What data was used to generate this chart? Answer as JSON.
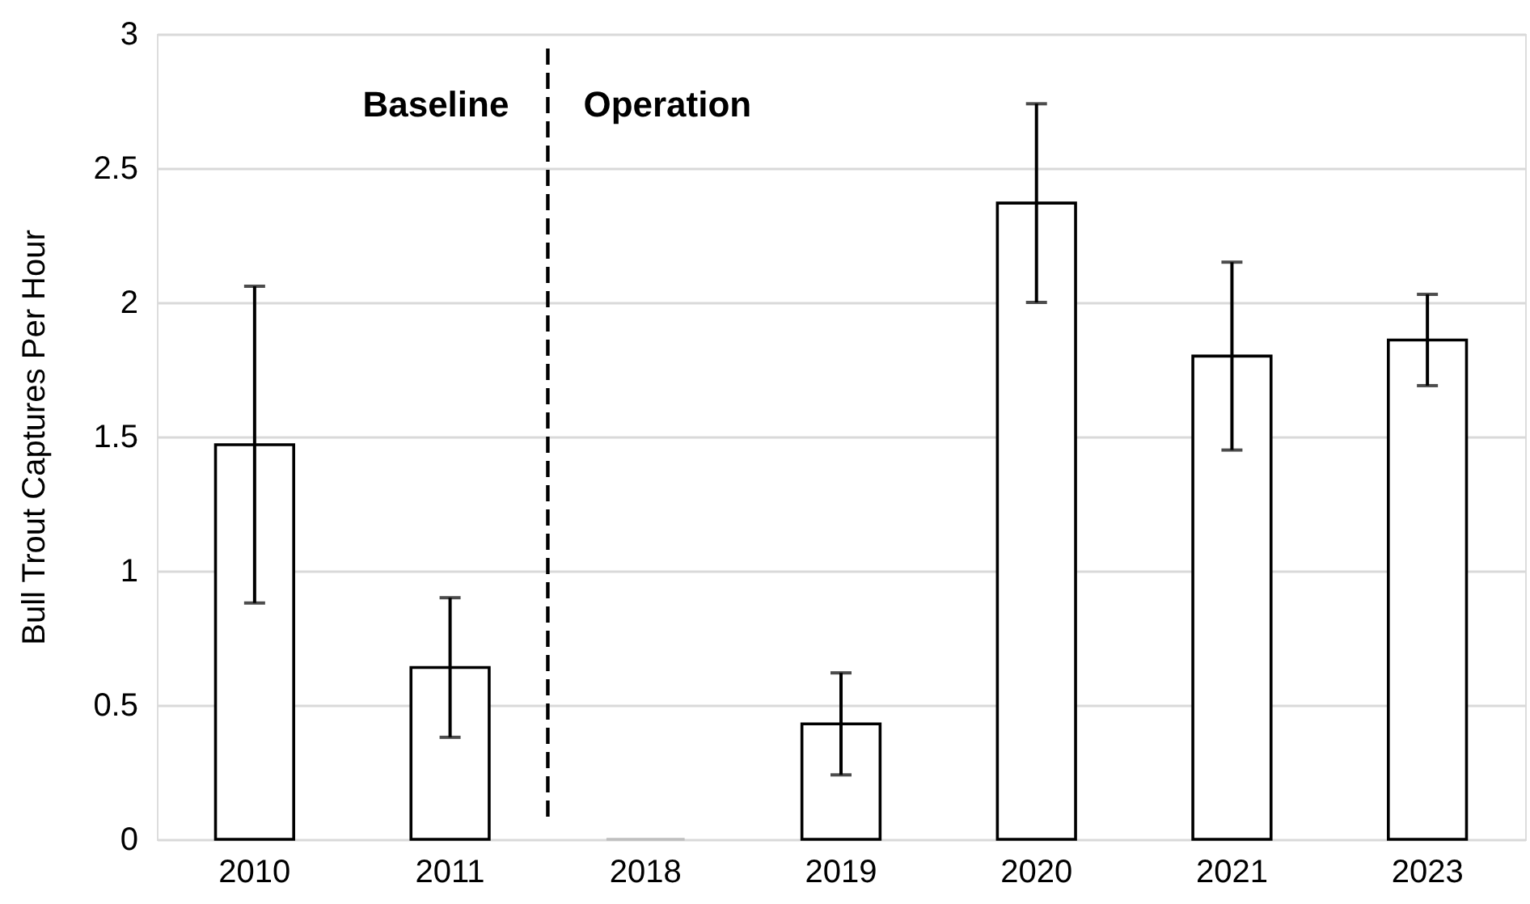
{
  "chart_data": {
    "type": "bar",
    "categories": [
      "2010",
      "2011",
      "2018",
      "2019",
      "2020",
      "2021",
      "2023"
    ],
    "values": [
      1.47,
      0.64,
      0,
      0.43,
      2.37,
      1.8,
      1.86
    ],
    "errors": [
      0.59,
      0.26,
      null,
      0.19,
      0.37,
      0.35,
      0.17
    ],
    "colors": [
      "#ffffff",
      "#ffffff",
      "#bfbfbf",
      "#ffffff",
      "#ffffff",
      "#ffffff",
      "#ffffff"
    ],
    "ylabel": "Bull Trout Captures Per Hour",
    "ylim": [
      0,
      3
    ],
    "yticks": [
      0,
      0.5,
      1,
      1.5,
      2,
      2.5,
      3
    ],
    "grid": "y",
    "annotations": [
      "Baseline",
      "Operation"
    ]
  }
}
